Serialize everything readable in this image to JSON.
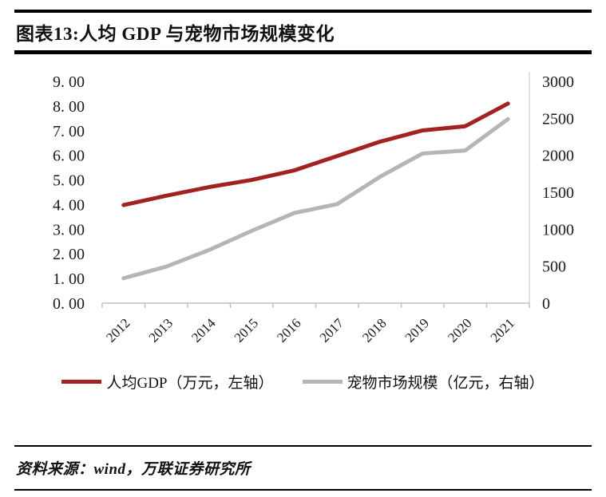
{
  "header": {
    "title": "图表13:人均 GDP 与宠物市场规模变化"
  },
  "chart_data": {
    "type": "line",
    "categories": [
      "2012",
      "2013",
      "2014",
      "2015",
      "2016",
      "2017",
      "2018",
      "2019",
      "2020",
      "2021"
    ],
    "series": [
      {
        "name": "人均GDP（万元，左轴）",
        "axis": "left",
        "color": "#A22121",
        "values": [
          3.98,
          4.36,
          4.71,
          5.0,
          5.39,
          5.97,
          6.55,
          7.01,
          7.18,
          8.1
        ]
      },
      {
        "name": "宠物市场规模（亿元，右轴）",
        "axis": "right",
        "color": "#B5B5B5",
        "values": [
          337,
          494,
          719,
          978,
          1220,
          1340,
          1708,
          2024,
          2065,
          2490
        ]
      }
    ],
    "left_axis": {
      "min": 0,
      "max": 9,
      "ticks": [
        "0. 00",
        "1. 00",
        "2. 00",
        "3. 00",
        "4. 00",
        "5. 00",
        "6. 00",
        "7. 00",
        "8. 00",
        "9. 00"
      ]
    },
    "right_axis": {
      "min": 0,
      "max": 3000,
      "ticks": [
        "0",
        "500",
        "1000",
        "1500",
        "2000",
        "2500",
        "3000"
      ]
    },
    "grid": false,
    "legend_position": "bottom",
    "title": "图表13:人均 GDP 与宠物市场规模变化"
  },
  "footer": {
    "source": "资料来源：wind，万联证券研究所"
  }
}
